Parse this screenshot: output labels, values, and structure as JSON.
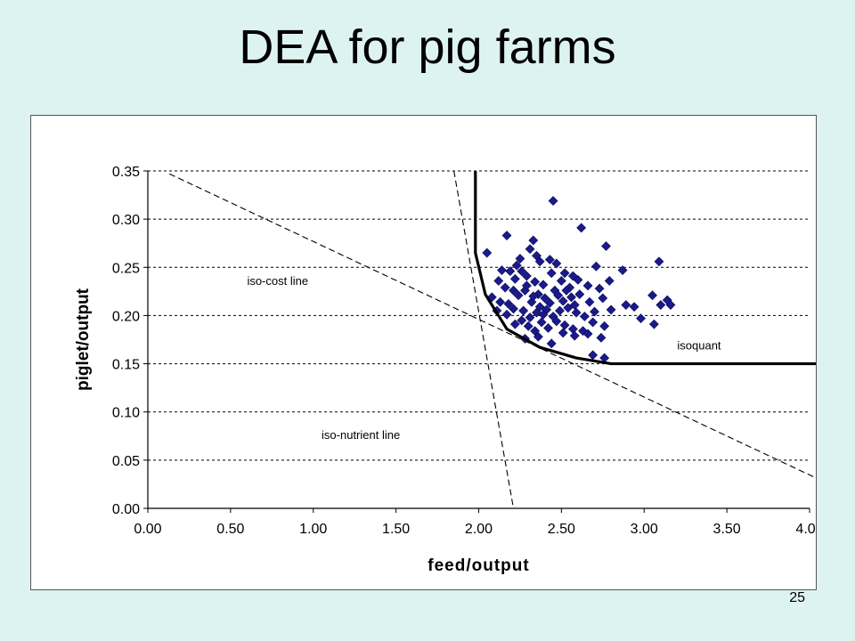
{
  "slide": {
    "title": "DEA for pig farms",
    "page_number": "25"
  },
  "chart_data": {
    "type": "scatter",
    "title": "",
    "xlabel": "feed/output",
    "ylabel": "piglet/output",
    "xlim": [
      0,
      4
    ],
    "ylim": [
      0,
      0.35
    ],
    "x_ticks": [
      "0.00",
      "0.50",
      "1.00",
      "1.50",
      "2.00",
      "2.50",
      "3.00",
      "3.50",
      "4.00"
    ],
    "y_ticks": [
      "0.00",
      "0.05",
      "0.10",
      "0.15",
      "0.20",
      "0.25",
      "0.30",
      "0.35"
    ],
    "grid": "horizontal dashed",
    "legend": "none",
    "marker_color": "#1a1a8c",
    "annotations": [
      {
        "text": "iso-cost line",
        "x": 0.6,
        "y": 0.232
      },
      {
        "text": "isoquant",
        "x": 3.2,
        "y": 0.165
      },
      {
        "text": "iso-nutrient line",
        "x": 1.05,
        "y": 0.072
      }
    ],
    "points": [
      [
        2.45,
        0.319
      ],
      [
        2.17,
        0.283
      ],
      [
        2.62,
        0.291
      ],
      [
        2.77,
        0.272
      ],
      [
        2.33,
        0.278
      ],
      [
        2.31,
        0.269
      ],
      [
        2.35,
        0.262
      ],
      [
        2.25,
        0.259
      ],
      [
        2.05,
        0.265
      ],
      [
        2.14,
        0.247
      ],
      [
        2.19,
        0.246
      ],
      [
        2.23,
        0.252
      ],
      [
        2.26,
        0.246
      ],
      [
        2.37,
        0.256
      ],
      [
        2.43,
        0.258
      ],
      [
        2.47,
        0.254
      ],
      [
        2.52,
        0.244
      ],
      [
        2.57,
        0.241
      ],
      [
        2.71,
        0.251
      ],
      [
        2.87,
        0.247
      ],
      [
        3.09,
        0.256
      ],
      [
        2.12,
        0.236
      ],
      [
        2.16,
        0.229
      ],
      [
        2.22,
        0.238
      ],
      [
        2.29,
        0.241
      ],
      [
        2.34,
        0.235
      ],
      [
        2.39,
        0.232
      ],
      [
        2.44,
        0.244
      ],
      [
        2.5,
        0.236
      ],
      [
        2.55,
        0.229
      ],
      [
        2.6,
        0.237
      ],
      [
        2.66,
        0.231
      ],
      [
        2.73,
        0.228
      ],
      [
        2.79,
        0.236
      ],
      [
        2.08,
        0.219
      ],
      [
        2.13,
        0.214
      ],
      [
        2.18,
        0.212
      ],
      [
        2.24,
        0.221
      ],
      [
        2.28,
        0.226
      ],
      [
        2.32,
        0.214
      ],
      [
        2.36,
        0.222
      ],
      [
        2.4,
        0.218
      ],
      [
        2.46,
        0.226
      ],
      [
        2.51,
        0.215
      ],
      [
        2.56,
        0.219
      ],
      [
        2.61,
        0.222
      ],
      [
        2.67,
        0.214
      ],
      [
        2.75,
        0.218
      ],
      [
        3.05,
        0.221
      ],
      [
        3.1,
        0.211
      ],
      [
        3.14,
        0.216
      ],
      [
        3.16,
        0.211
      ],
      [
        2.11,
        0.205
      ],
      [
        2.17,
        0.201
      ],
      [
        2.21,
        0.207
      ],
      [
        2.27,
        0.205
      ],
      [
        2.31,
        0.198
      ],
      [
        2.35,
        0.203
      ],
      [
        2.41,
        0.206
      ],
      [
        2.45,
        0.199
      ],
      [
        2.49,
        0.205
      ],
      [
        2.54,
        0.208
      ],
      [
        2.59,
        0.203
      ],
      [
        2.64,
        0.199
      ],
      [
        2.7,
        0.204
      ],
      [
        2.8,
        0.206
      ],
      [
        2.89,
        0.211
      ],
      [
        2.94,
        0.209
      ],
      [
        2.22,
        0.191
      ],
      [
        2.26,
        0.195
      ],
      [
        2.3,
        0.189
      ],
      [
        2.34,
        0.184
      ],
      [
        2.38,
        0.193
      ],
      [
        2.42,
        0.187
      ],
      [
        2.47,
        0.194
      ],
      [
        2.52,
        0.19
      ],
      [
        2.57,
        0.186
      ],
      [
        2.63,
        0.184
      ],
      [
        2.69,
        0.193
      ],
      [
        2.76,
        0.189
      ],
      [
        2.98,
        0.197
      ],
      [
        3.06,
        0.191
      ],
      [
        2.28,
        0.176
      ],
      [
        2.36,
        0.178
      ],
      [
        2.44,
        0.171
      ],
      [
        2.51,
        0.182
      ],
      [
        2.58,
        0.179
      ],
      [
        2.66,
        0.181
      ],
      [
        2.74,
        0.177
      ],
      [
        2.69,
        0.159
      ],
      [
        2.76,
        0.156
      ],
      [
        2.21,
        0.226
      ],
      [
        2.29,
        0.231
      ],
      [
        2.37,
        0.209
      ],
      [
        2.43,
        0.213
      ],
      [
        2.53,
        0.226
      ],
      [
        2.58,
        0.211
      ],
      [
        2.33,
        0.22
      ],
      [
        2.39,
        0.201
      ],
      [
        2.48,
        0.221
      ]
    ],
    "isoquant": [
      [
        1.98,
        0.35
      ],
      [
        1.98,
        0.265
      ],
      [
        2.04,
        0.222
      ],
      [
        2.17,
        0.186
      ],
      [
        2.37,
        0.167
      ],
      [
        2.59,
        0.156
      ],
      [
        2.8,
        0.15
      ],
      [
        4.05,
        0.15
      ]
    ],
    "iso_cost_line": [
      [
        0.13,
        0.347
      ],
      [
        4.12,
        0.025
      ]
    ],
    "iso_nutrient_line": [
      [
        1.85,
        0.35
      ],
      [
        2.21,
        0.0
      ]
    ]
  }
}
